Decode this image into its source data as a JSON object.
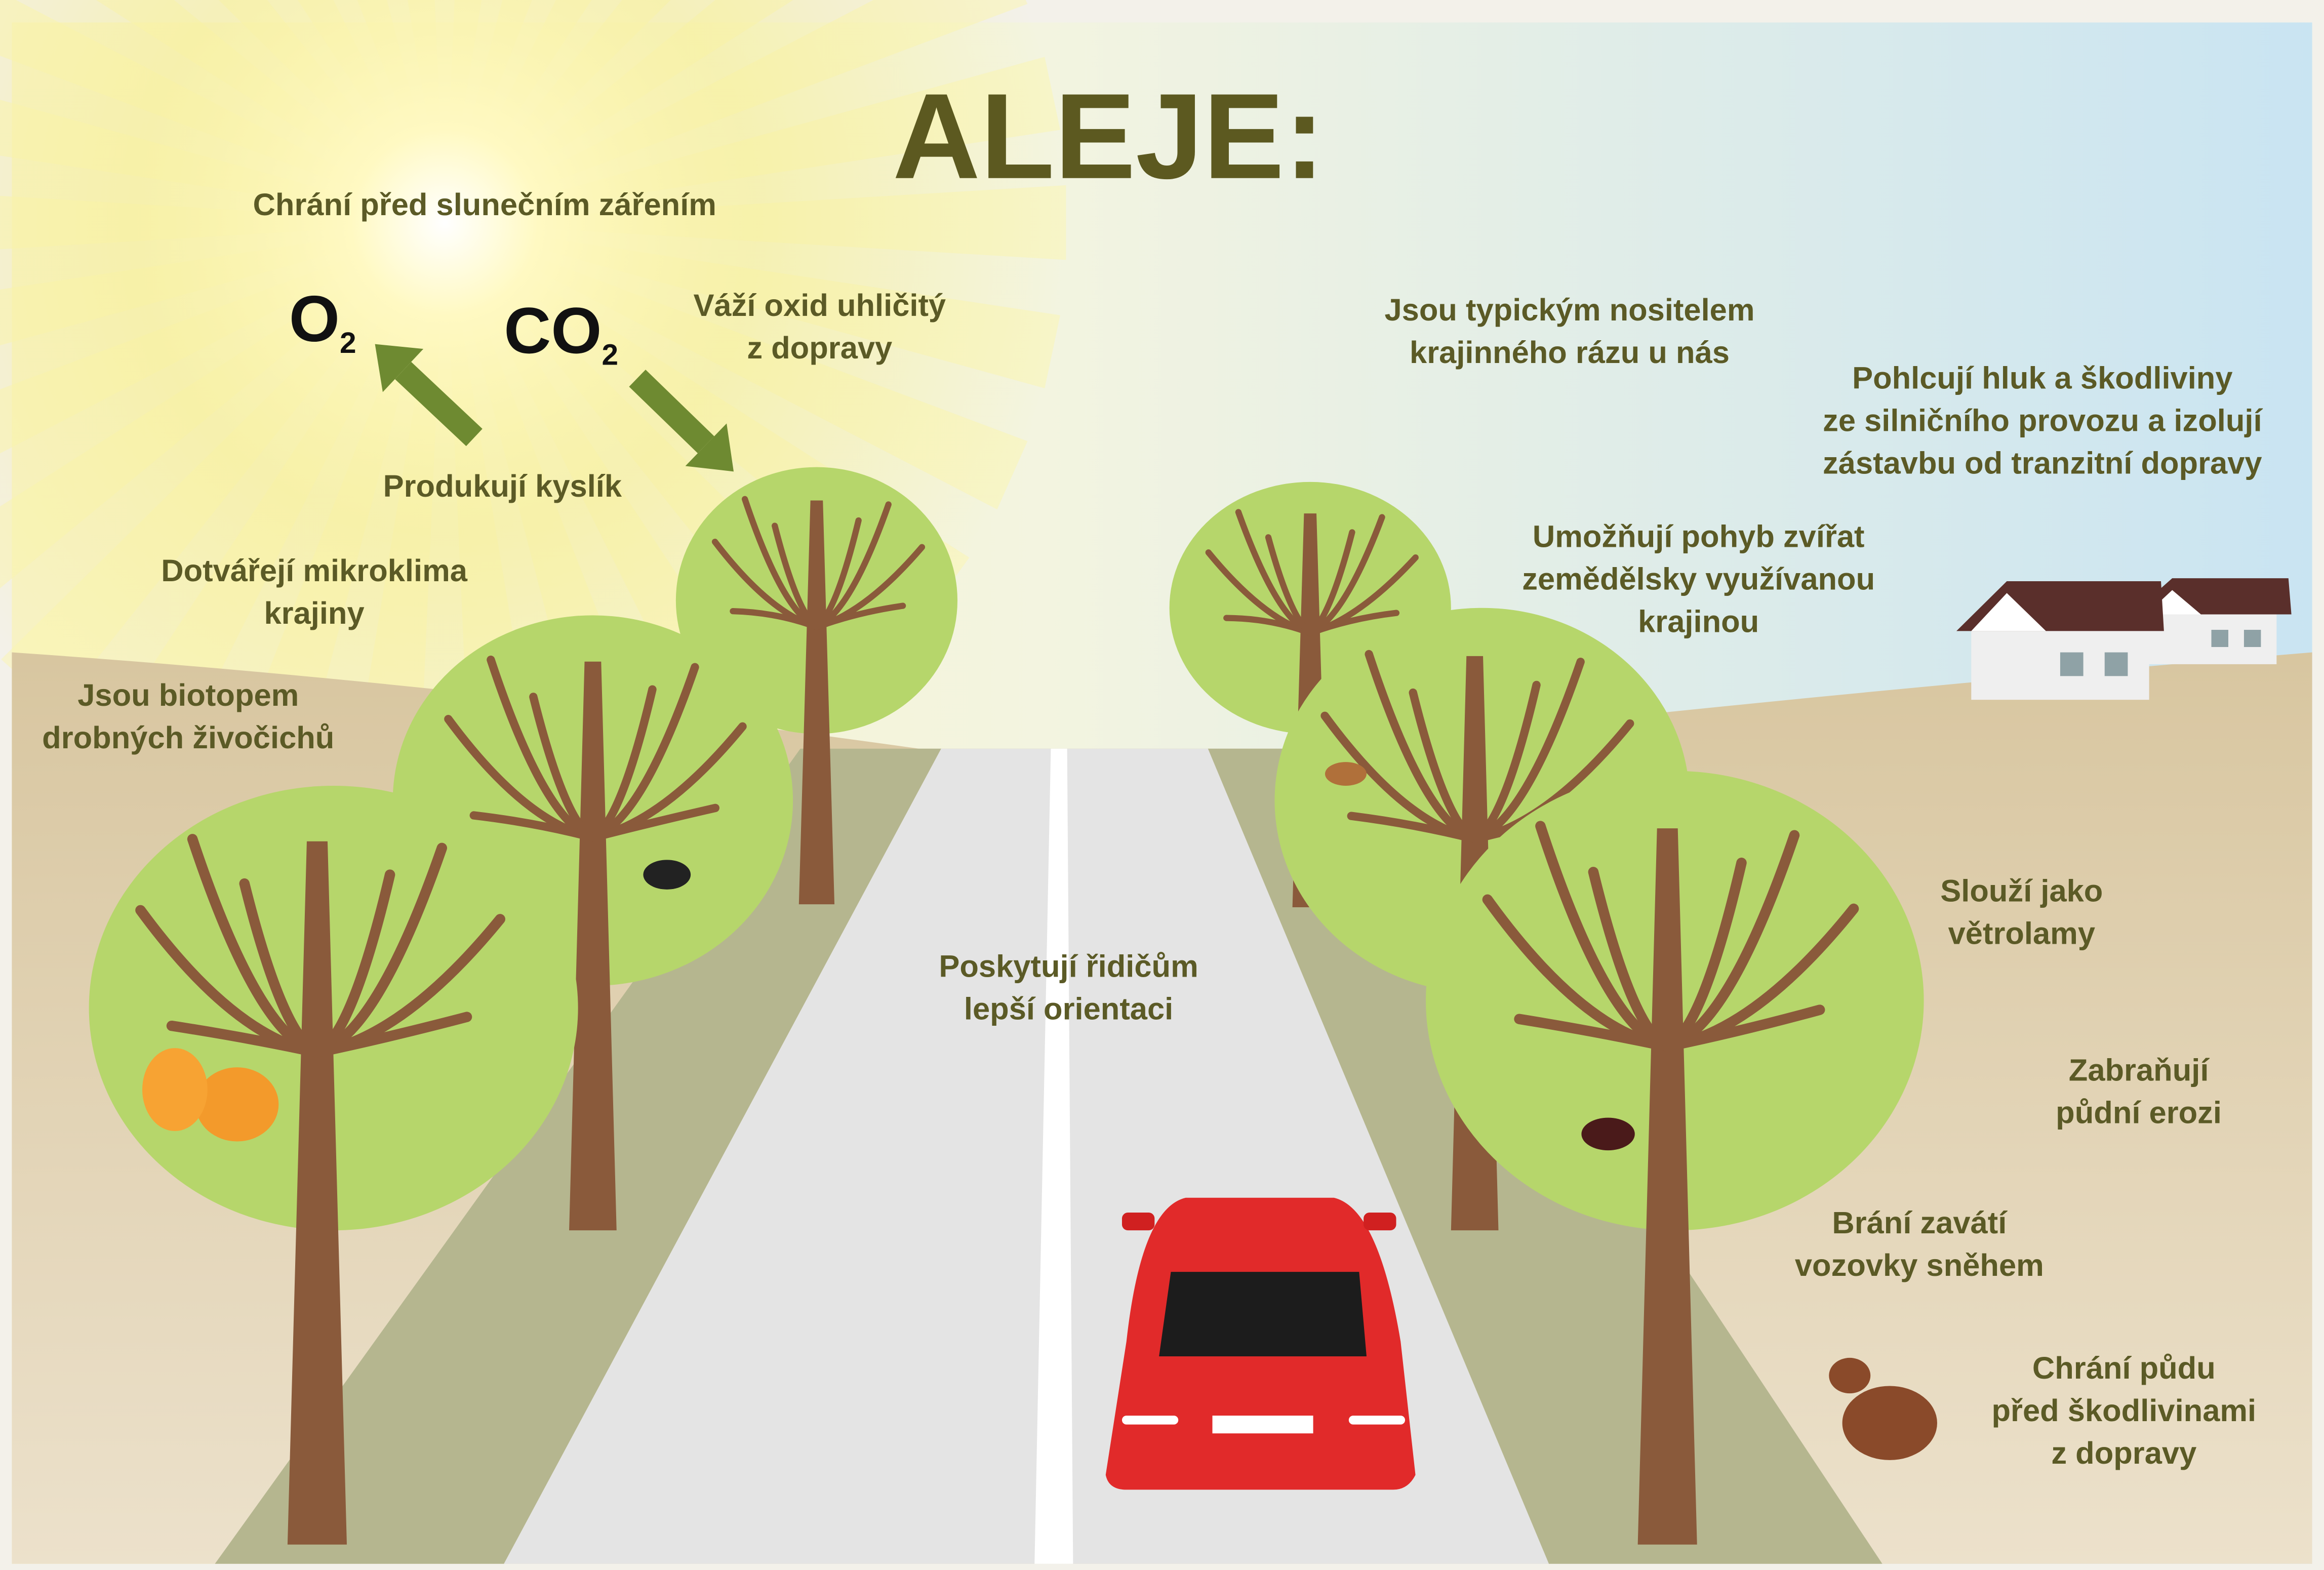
{
  "title": "ALEJE:",
  "formulas": [
    {
      "symbol": "O",
      "subscript": "2"
    },
    {
      "symbol": "CO",
      "subscript": "2"
    }
  ],
  "labels": [
    {
      "lines": [
        "Chrání před slunečním zářením"
      ]
    },
    {
      "lines": [
        "Váží oxid uhličitý",
        "z dopravy"
      ]
    },
    {
      "lines": [
        "Produkují kyslík"
      ]
    },
    {
      "lines": [
        "Dotvářejí mikroklima",
        "krajiny"
      ]
    },
    {
      "lines": [
        "Jsou biotopem",
        "drobných živočichů"
      ]
    },
    {
      "lines": [
        "Jsou typickým nositelem",
        "krajinného rázu u nás"
      ]
    },
    {
      "lines": [
        "Pohlcují hluk a škodliviny",
        "ze silničního provozu a izolují",
        "zástavbu od tranzitní dopravy"
      ]
    },
    {
      "lines": [
        "Umožňují pohyb zvířat",
        "zemědělsky využívanou",
        "krajinou"
      ]
    },
    {
      "lines": [
        "Poskytují řidičům",
        "lepší orientaci"
      ]
    },
    {
      "lines": [
        "Slouží jako",
        "větrolamy"
      ]
    },
    {
      "lines": [
        "Zabraňují",
        "půdní erozi"
      ]
    },
    {
      "lines": [
        "Brání zavátí",
        "vozovky sněhem"
      ]
    },
    {
      "lines": [
        "Chrání půdu",
        "před škodlivinami",
        "z dopravy"
      ]
    }
  ]
}
